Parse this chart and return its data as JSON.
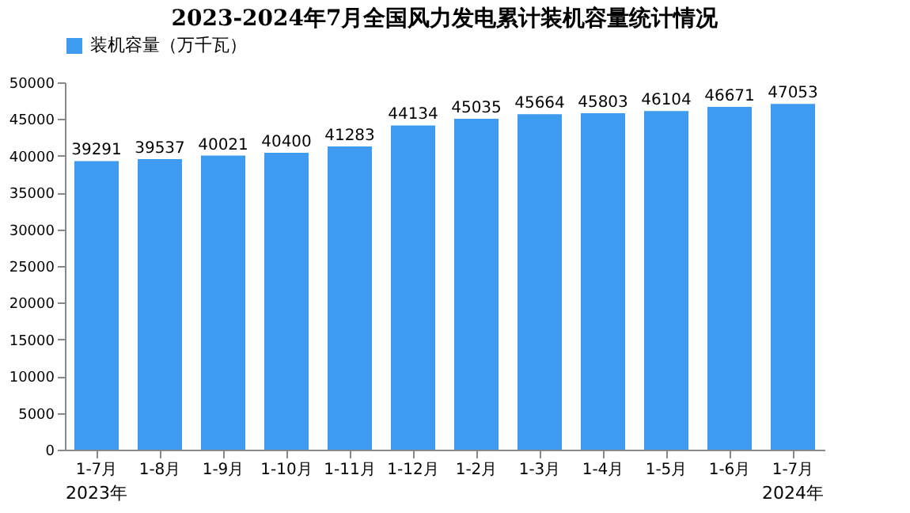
{
  "chart_data": {
    "type": "bar",
    "title": "2023-2024年7月全国风力发电累计装机容量统计情况",
    "categories": [
      "1-7月",
      "1-8月",
      "1-9月",
      "1-10月",
      "1-11月",
      "1-12月",
      "1-2月",
      "1-3月",
      "1-4月",
      "1-5月",
      "1-6月",
      "1-7月"
    ],
    "series": [
      {
        "name": "装机容量（万千瓦）",
        "color": "#3d9bf0",
        "values": [
          39291,
          39537,
          40021,
          40400,
          41283,
          44134,
          45035,
          45664,
          45803,
          46104,
          46671,
          47053
        ]
      }
    ],
    "ylim": [
      0,
      50000
    ],
    "yticks": [
      0,
      5000,
      10000,
      15000,
      20000,
      25000,
      30000,
      35000,
      40000,
      45000,
      50000
    ],
    "data_labels": true,
    "legend": "top",
    "grid": false,
    "annotations": [
      "2023年",
      "2024年"
    ]
  }
}
